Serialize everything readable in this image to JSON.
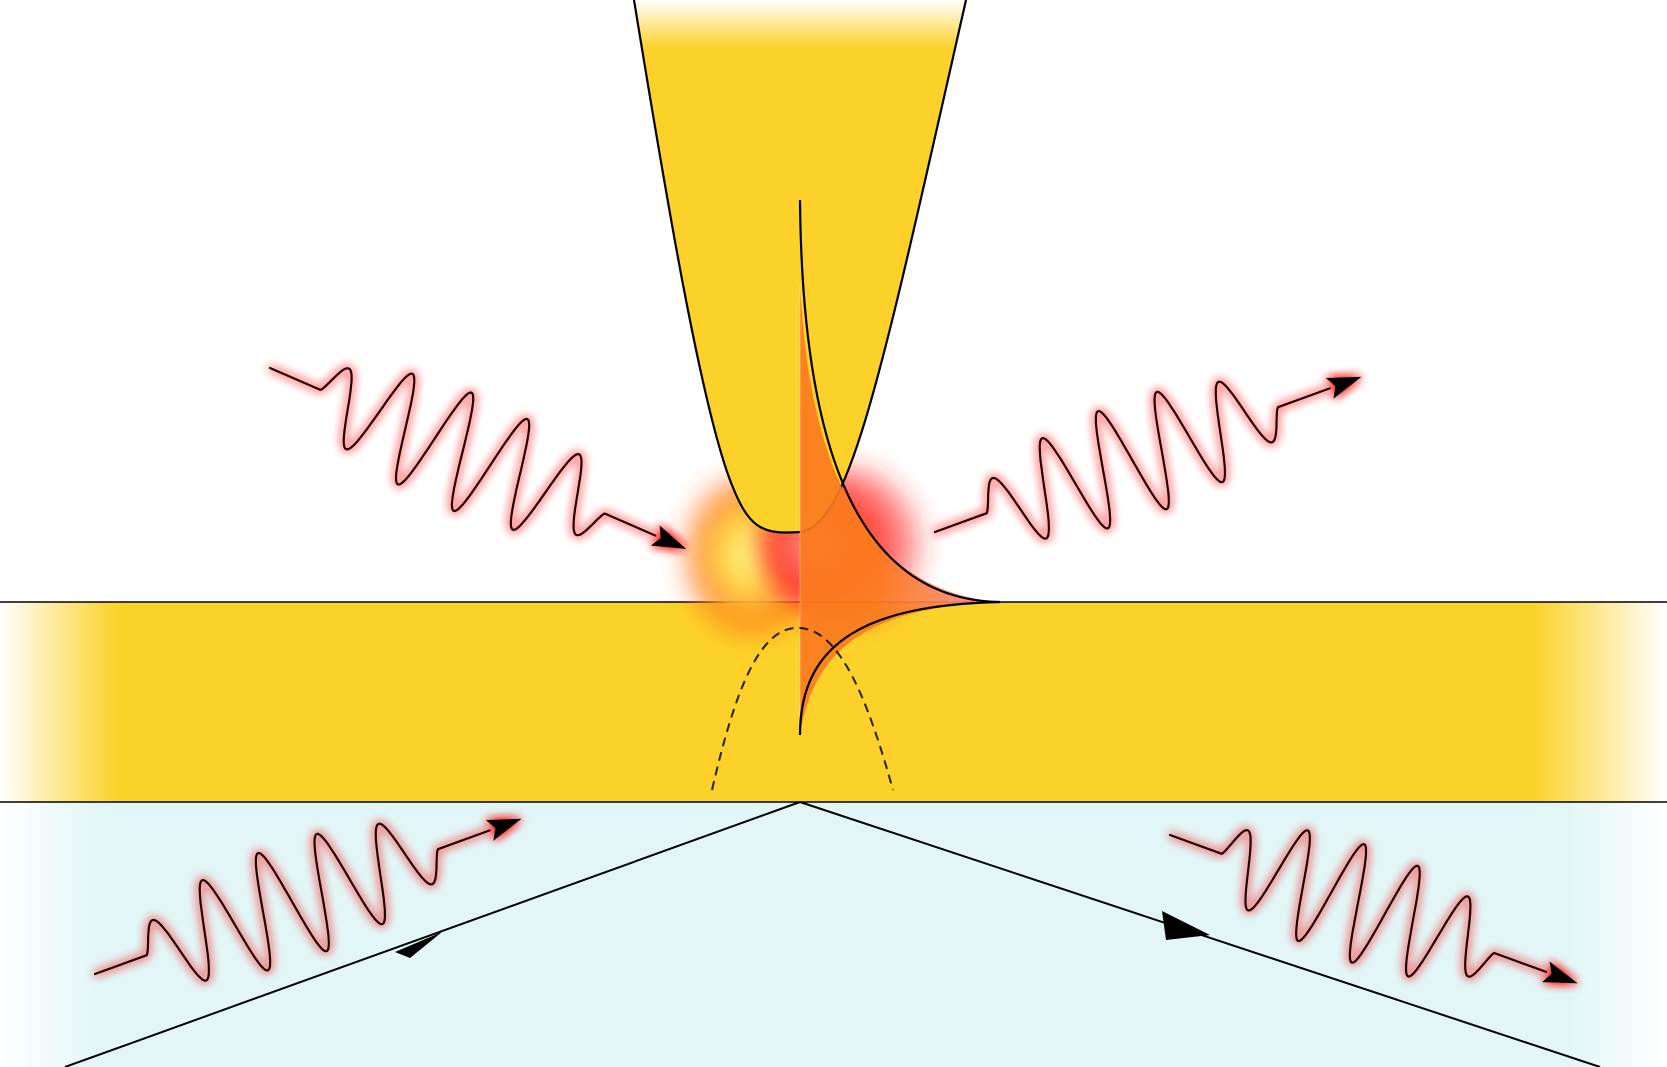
{
  "diagram": {
    "colors": {
      "background": "#ffffff",
      "gold_film": "#fcd22a",
      "substrate": "#e2f6f6",
      "field_orange": "#fb7b1e",
      "field_pink": "#fc7f80",
      "glow_yellow": "#fff48a",
      "glow_red": "#ff4a3a",
      "wave_stroke": "#1a0505",
      "wave_glow": "#ff2020",
      "line": "#000000"
    },
    "icons": [
      "sine-wave-arrow-icon",
      "ray-arrow-icon"
    ]
  }
}
